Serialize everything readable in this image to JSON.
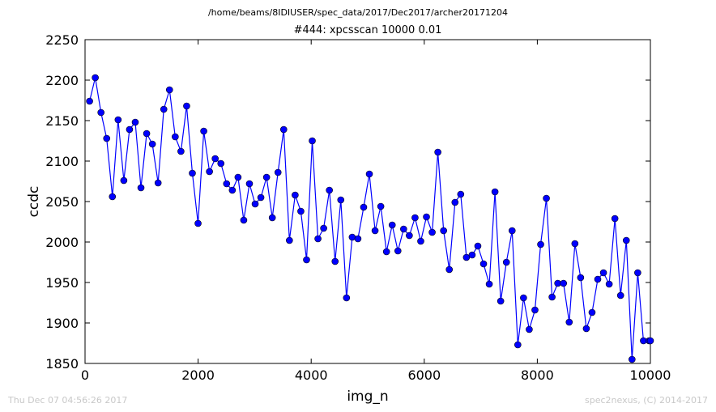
{
  "figure": {
    "suptitle": "/home/beams/8IDIUSER/spec_data/2017/Dec2017/archer20171204",
    "footer_left": "Thu Dec 07 04:56:26 2017",
    "footer_right": "spec2nexus, (C) 2014-2017"
  },
  "colors": {
    "series": "#0000ff",
    "axes": "#000000",
    "footer": "#c8c8c8"
  },
  "chart_data": {
    "type": "line",
    "title": "#444: xpcsscan 10000 0.01",
    "xlabel": "img_n",
    "ylabel": "ccdc",
    "xlim": [
      0,
      10000
    ],
    "ylim": [
      1850,
      2250
    ],
    "xticks": [
      0,
      2000,
      4000,
      6000,
      8000,
      10000
    ],
    "yticks": [
      1850,
      1900,
      1950,
      2000,
      2050,
      2100,
      2150,
      2200,
      2250
    ],
    "grid": false,
    "legend": "none",
    "marker": "circle",
    "series": [
      {
        "x": [
          80,
          181,
          282,
          383,
          484,
          585,
          686,
          787,
          888,
          989,
          1090,
          1191,
          1292,
          1393,
          1494,
          1595,
          1696,
          1797,
          1898,
          1999,
          2100,
          2201,
          2302,
          2403,
          2504,
          2605,
          2706,
          2807,
          2908,
          3009,
          3110,
          3211,
          3312,
          3413,
          3514,
          3615,
          3716,
          3817,
          3918,
          4019,
          4120,
          4221,
          4322,
          4423,
          4524,
          4625,
          4726,
          4827,
          4928,
          5029,
          5130,
          5231,
          5332,
          5433,
          5534,
          5635,
          5736,
          5837,
          5938,
          6039,
          6140,
          6241,
          6342,
          6443,
          6544,
          6645,
          6746,
          6847,
          6948,
          7049,
          7150,
          7251,
          7352,
          7453,
          7554,
          7655,
          7756,
          7857,
          7958,
          8059,
          8160,
          8261,
          8362,
          8463,
          8564,
          8665,
          8766,
          8867,
          8968,
          9069,
          9170,
          9271,
          9372,
          9473,
          9574,
          9675,
          9776,
          9877,
          9978,
          10000
        ],
        "y": [
          2174,
          2203,
          2160,
          2128,
          2056,
          2151,
          2076,
          2139,
          2148,
          2067,
          2134,
          2121,
          2073,
          2164,
          2188,
          2130,
          2112,
          2168,
          2085,
          2023,
          2137,
          2087,
          2103,
          2097,
          2072,
          2064,
          2080,
          2027,
          2072,
          2047,
          2055,
          2080,
          2030,
          2086,
          2139,
          2002,
          2058,
          2038,
          1978,
          2125,
          2004,
          2017,
          2064,
          1976,
          2052,
          1931,
          2006,
          2004,
          2043,
          2084,
          2014,
          2044,
          1988,
          2021,
          1989,
          2016,
          2008,
          2030,
          2001,
          2031,
          2012,
          2111,
          2014,
          1966,
          2049,
          2059,
          1981,
          1984,
          1995,
          1973,
          1948,
          2062,
          1927,
          1975,
          2014,
          1873,
          1931,
          1892,
          1916,
          1997,
          2054,
          1932,
          1949,
          1949,
          1901,
          1998,
          1956,
          1893,
          1913,
          1954,
          1962,
          1948,
          2029,
          1934,
          2002,
          1855,
          1962,
          1878,
          1878,
          1878
        ]
      }
    ]
  }
}
